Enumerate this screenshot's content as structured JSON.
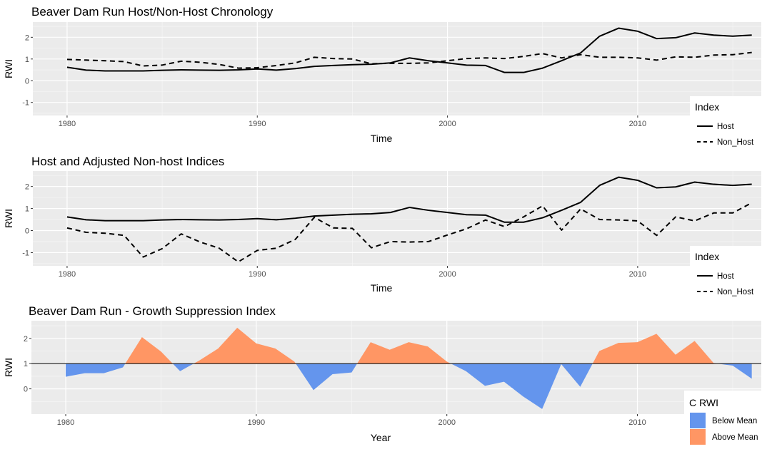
{
  "chart_data": [
    {
      "type": "line",
      "title": "Beaver Dam Run Host/Non-Host Chronology",
      "xlabel": "Time",
      "ylabel": "RWI",
      "xlim": [
        1978.2,
        2016.5
      ],
      "ylim": [
        -1.6,
        2.7
      ],
      "x_ticks": [
        1980,
        1990,
        2000,
        2010
      ],
      "y_ticks": [
        -1,
        0,
        1,
        2
      ],
      "legend": {
        "title": "Index",
        "position": "right",
        "entries": [
          "Host",
          "Non_Host"
        ]
      },
      "x": [
        1980,
        1981,
        1982,
        1983,
        1984,
        1985,
        1986,
        1987,
        1988,
        1989,
        1990,
        1991,
        1992,
        1993,
        1994,
        1995,
        1996,
        1997,
        1998,
        1999,
        2000,
        2001,
        2002,
        2003,
        2004,
        2005,
        2006,
        2007,
        2008,
        2009,
        2010,
        2011,
        2012,
        2013,
        2014,
        2015,
        2016
      ],
      "series": [
        {
          "name": "Host",
          "dash": "solid",
          "values": [
            0.62,
            0.49,
            0.45,
            0.45,
            0.45,
            0.48,
            0.5,
            0.49,
            0.48,
            0.5,
            0.54,
            0.49,
            0.56,
            0.66,
            0.7,
            0.74,
            0.76,
            0.82,
            1.05,
            0.92,
            0.82,
            0.72,
            0.7,
            0.38,
            0.38,
            0.58,
            0.92,
            1.28,
            2.05,
            2.42,
            2.28,
            1.94,
            1.98,
            2.2,
            2.1,
            2.05,
            2.1
          ]
        },
        {
          "name": "Non_Host",
          "dash": "dashed",
          "values": [
            0.98,
            0.95,
            0.92,
            0.88,
            0.68,
            0.72,
            0.9,
            0.85,
            0.75,
            0.58,
            0.6,
            0.7,
            0.82,
            1.08,
            1.02,
            1.0,
            0.78,
            0.8,
            0.8,
            0.82,
            0.92,
            1.02,
            1.05,
            1.02,
            1.12,
            1.25,
            1.05,
            1.2,
            1.08,
            1.08,
            1.05,
            0.95,
            1.1,
            1.08,
            1.18,
            1.2,
            1.3
          ]
        }
      ]
    },
    {
      "type": "line",
      "title": "Host and Adjusted Non-host Indices",
      "xlabel": "Time",
      "ylabel": "RWI",
      "xlim": [
        1978.2,
        2016.5
      ],
      "ylim": [
        -1.6,
        2.7
      ],
      "x_ticks": [
        1980,
        1990,
        2000,
        2010
      ],
      "y_ticks": [
        -1,
        0,
        1,
        2
      ],
      "legend": {
        "title": "Index",
        "position": "right",
        "entries": [
          "Host",
          "Non_Host"
        ]
      },
      "x": [
        1980,
        1981,
        1982,
        1983,
        1984,
        1985,
        1986,
        1987,
        1988,
        1989,
        1990,
        1991,
        1992,
        1993,
        1994,
        1995,
        1996,
        1997,
        1998,
        1999,
        2000,
        2001,
        2002,
        2003,
        2004,
        2005,
        2006,
        2007,
        2008,
        2009,
        2010,
        2011,
        2012,
        2013,
        2014,
        2015,
        2016
      ],
      "series": [
        {
          "name": "Host",
          "dash": "solid",
          "values": [
            0.62,
            0.49,
            0.45,
            0.45,
            0.45,
            0.48,
            0.5,
            0.49,
            0.48,
            0.5,
            0.54,
            0.49,
            0.56,
            0.66,
            0.7,
            0.74,
            0.76,
            0.82,
            1.05,
            0.92,
            0.82,
            0.72,
            0.7,
            0.38,
            0.38,
            0.58,
            0.92,
            1.28,
            2.05,
            2.42,
            2.28,
            1.94,
            1.98,
            2.2,
            2.1,
            2.05,
            2.1
          ]
        },
        {
          "name": "Non_Host",
          "dash": "dashed",
          "values": [
            0.12,
            -0.08,
            -0.12,
            -0.22,
            -1.2,
            -0.82,
            -0.15,
            -0.52,
            -0.8,
            -1.42,
            -0.9,
            -0.8,
            -0.4,
            0.6,
            0.12,
            0.1,
            -0.78,
            -0.5,
            -0.52,
            -0.5,
            -0.2,
            0.08,
            0.48,
            0.18,
            0.62,
            1.12,
            0.02,
            0.98,
            0.5,
            0.48,
            0.44,
            -0.22,
            0.62,
            0.44,
            0.8,
            0.8,
            1.26
          ]
        }
      ]
    },
    {
      "type": "area",
      "title": "Beaver Dam Run - Growth Suppression Index",
      "xlabel": "Year",
      "ylabel": "RWI",
      "xlim": [
        1978.2,
        2016.5
      ],
      "ylim": [
        -1.0,
        2.7
      ],
      "x_ticks": [
        1980,
        1990,
        2000,
        2010
      ],
      "y_ticks": [
        0,
        1,
        2
      ],
      "baseline": 1,
      "legend": {
        "title": "C RWI",
        "position": "right",
        "entries": [
          "Below Mean",
          "Above Mean"
        ]
      },
      "colors": {
        "below": "#6495ED",
        "above": "#FF9664"
      },
      "x": [
        1980,
        1981,
        1982,
        1983,
        1984,
        1985,
        1986,
        1987,
        1988,
        1989,
        1990,
        1991,
        1992,
        1993,
        1994,
        1995,
        1996,
        1997,
        1998,
        1999,
        2000,
        2001,
        2002,
        2003,
        2004,
        2005,
        2006,
        2007,
        2008,
        2009,
        2010,
        2011,
        2012,
        2013,
        2014,
        2015,
        2016
      ],
      "values": [
        0.48,
        0.62,
        0.62,
        0.85,
        2.05,
        1.48,
        0.7,
        1.12,
        1.6,
        2.42,
        1.8,
        1.6,
        1.08,
        -0.05,
        0.58,
        0.65,
        1.85,
        1.55,
        1.85,
        1.68,
        1.08,
        0.7,
        0.12,
        0.28,
        -0.3,
        -0.8,
        0.98,
        0.08,
        1.5,
        1.82,
        1.85,
        2.18,
        1.35,
        1.9,
        1.02,
        0.92,
        0.4
      ]
    }
  ]
}
